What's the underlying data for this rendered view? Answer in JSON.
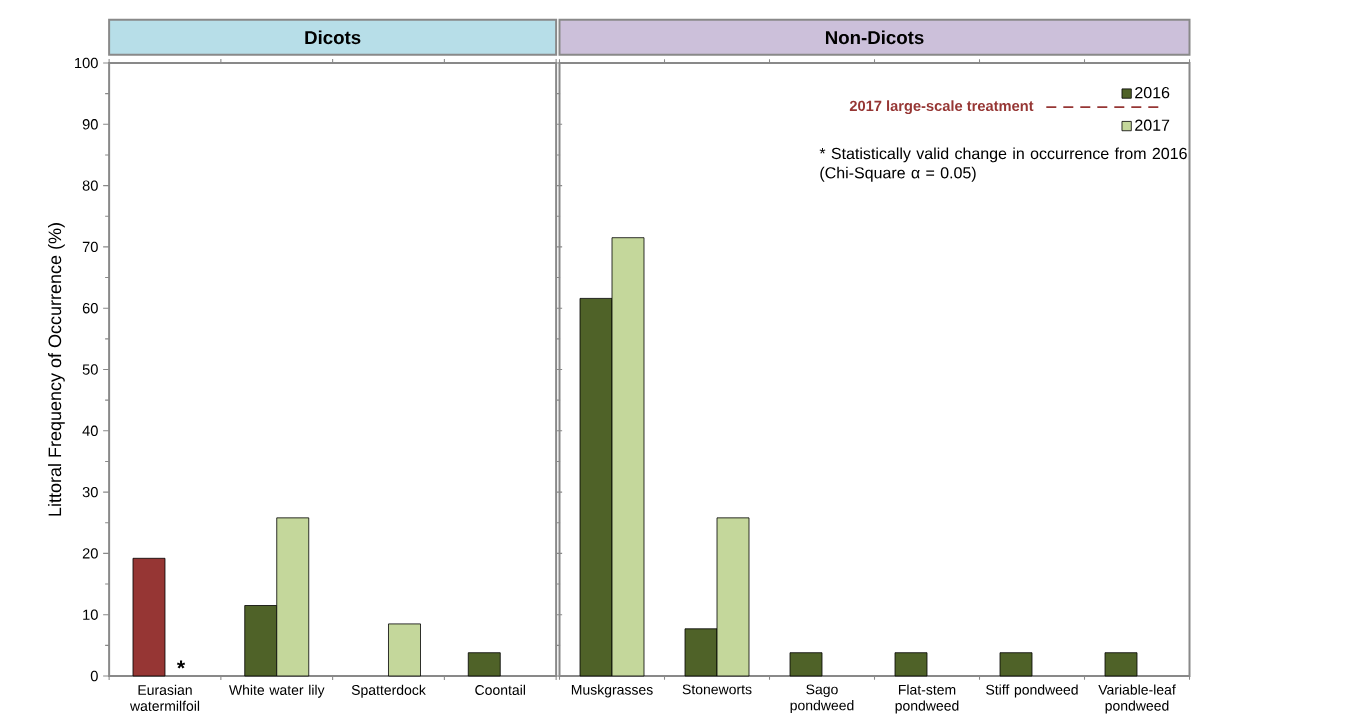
{
  "chart_data": [
    {
      "type": "bar",
      "title": "Dicots",
      "ylabel": "Littoral Frequency of Occurrence (%)",
      "categories": [
        "Eurasian watermilfoil",
        "White water lily",
        "Spatterdock",
        "Coontail"
      ],
      "series": [
        {
          "colors": [
            "#963634",
            "#4f6228",
            "#4f6228",
            "#4f6228"
          ],
          "values": [
            19.2,
            11.5,
            0,
            3.8
          ]
        },
        {
          "color": "#c4d79b",
          "values": [
            0,
            25.8,
            8.5,
            0
          ]
        }
      ],
      "ylim": [
        0,
        100
      ],
      "yticks": [
        0,
        10,
        20,
        30,
        40,
        50,
        60,
        70,
        80,
        90,
        100
      ],
      "grid": false,
      "annotations": [
        {
          "text": "*",
          "x": "Eurasian watermilfoil",
          "y": 0
        }
      ]
    },
    {
      "type": "bar",
      "title": "Non-Dicots",
      "categories": [
        "Muskgrasses",
        "Stoneworts",
        "Sago pondweed",
        "Flat-stem pondweed",
        "Stiff pondweed",
        "Variable-leaf pondweed"
      ],
      "series": [
        {
          "name": "2016",
          "color": "#4f6228",
          "values": [
            61.6,
            7.7,
            3.8,
            3.8,
            3.8,
            3.8
          ]
        },
        {
          "name": "2017",
          "color": "#c4d79b",
          "values": [
            71.5,
            25.8,
            0,
            0,
            0,
            0
          ]
        }
      ],
      "ylim": [
        0,
        100
      ],
      "yticks": [
        0,
        10,
        20,
        30,
        40,
        50,
        60,
        70,
        80,
        90,
        100
      ],
      "grid": false,
      "tick_labels": "x",
      "legend": "top right",
      "annotations": [
        "2017 large-scale treatment",
        "* Statistically valid change in occurrence from 2016 (Chi-Square α = 0.05)"
      ]
    }
  ]
}
